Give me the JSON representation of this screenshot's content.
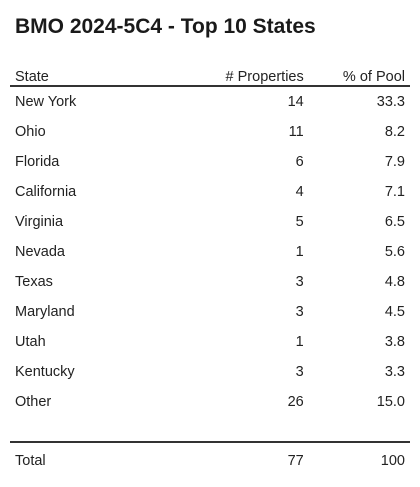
{
  "chart_data": {
    "type": "table",
    "title": "BMO 2024-5C4 - Top 10 States",
    "columns": [
      "State",
      "# Properties",
      "% of Pool"
    ],
    "rows": [
      {
        "state": "New York",
        "properties": "14",
        "pool": "33.3"
      },
      {
        "state": "Ohio",
        "properties": "11",
        "pool": "8.2"
      },
      {
        "state": "Florida",
        "properties": "6",
        "pool": "7.9"
      },
      {
        "state": "California",
        "properties": "4",
        "pool": "7.1"
      },
      {
        "state": "Virginia",
        "properties": "5",
        "pool": "6.5"
      },
      {
        "state": "Nevada",
        "properties": "1",
        "pool": "5.6"
      },
      {
        "state": "Texas",
        "properties": "3",
        "pool": "4.8"
      },
      {
        "state": "Maryland",
        "properties": "3",
        "pool": "4.5"
      },
      {
        "state": "Utah",
        "properties": "1",
        "pool": "3.8"
      },
      {
        "state": "Kentucky",
        "properties": "3",
        "pool": "3.3"
      },
      {
        "state": "Other",
        "properties": "26",
        "pool": "15.0"
      }
    ],
    "total": {
      "label": "Total",
      "properties": "77",
      "pool": "100"
    }
  }
}
